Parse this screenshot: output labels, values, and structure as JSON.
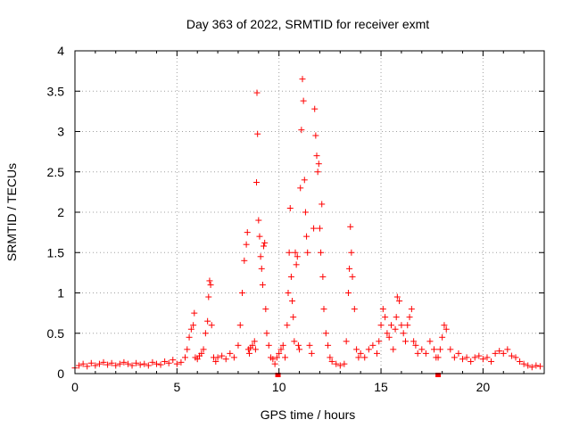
{
  "chart_data": {
    "type": "scatter",
    "title": "Day 363 of 2022, SRMTID for receiver exmt",
    "xlabel": "GPS time / hours",
    "ylabel": "SRMTID / TECUs",
    "xlim": [
      0,
      23
    ],
    "ylim": [
      0,
      4
    ],
    "x_ticks": [
      0,
      5,
      10,
      15,
      20
    ],
    "x_tick_labels": [
      "0",
      "5",
      "10",
      "15",
      "20"
    ],
    "y_ticks": [
      0,
      0.5,
      1,
      1.5,
      2,
      2.5,
      3,
      3.5,
      4
    ],
    "y_tick_labels": [
      "0",
      "0.5",
      "1",
      "1.5",
      "2",
      "2.5",
      "3",
      "3.5",
      "4"
    ],
    "grid": true,
    "marker": "+",
    "color": "#ff0000",
    "series": [
      {
        "name": "SRMTID",
        "x": [
          0.0,
          0.2,
          0.4,
          0.6,
          0.8,
          1.0,
          1.2,
          1.4,
          1.6,
          1.8,
          2.0,
          2.2,
          2.4,
          2.6,
          2.8,
          3.0,
          3.2,
          3.4,
          3.6,
          3.8,
          4.0,
          4.2,
          4.4,
          4.6,
          4.8,
          5.0,
          5.2,
          5.4,
          5.5,
          5.6,
          5.7,
          5.8,
          5.85,
          5.9,
          6.0,
          6.1,
          6.2,
          6.3,
          6.4,
          6.5,
          6.55,
          6.6,
          6.65,
          6.7,
          6.8,
          6.9,
          7.0,
          7.2,
          7.4,
          7.6,
          7.8,
          8.0,
          8.1,
          8.2,
          8.3,
          8.4,
          8.45,
          8.5,
          8.55,
          8.6,
          8.7,
          8.8,
          8.85,
          8.9,
          8.92,
          8.95,
          9.0,
          9.05,
          9.1,
          9.15,
          9.2,
          9.25,
          9.3,
          9.35,
          9.4,
          9.5,
          9.6,
          9.7,
          9.8,
          9.9,
          10.0,
          10.1,
          10.2,
          10.3,
          10.4,
          10.45,
          10.5,
          10.55,
          10.6,
          10.65,
          10.7,
          10.75,
          10.8,
          10.85,
          10.9,
          10.95,
          11.0,
          11.05,
          11.1,
          11.15,
          11.2,
          11.25,
          11.3,
          11.35,
          11.4,
          11.5,
          11.6,
          11.7,
          11.75,
          11.8,
          11.85,
          11.9,
          11.95,
          12.0,
          12.05,
          12.1,
          12.15,
          12.2,
          12.3,
          12.4,
          12.5,
          12.6,
          12.8,
          13.0,
          13.2,
          13.3,
          13.4,
          13.45,
          13.5,
          13.55,
          13.6,
          13.7,
          13.8,
          13.9,
          14.0,
          14.2,
          14.4,
          14.6,
          14.8,
          14.9,
          15.0,
          15.1,
          15.2,
          15.3,
          15.4,
          15.5,
          15.6,
          15.7,
          15.75,
          15.8,
          15.9,
          16.0,
          16.1,
          16.2,
          16.3,
          16.4,
          16.5,
          16.6,
          16.7,
          16.8,
          17.0,
          17.2,
          17.4,
          17.6,
          17.7,
          17.8,
          17.9,
          18.0,
          18.1,
          18.2,
          18.4,
          18.6,
          18.8,
          19.0,
          19.2,
          19.4,
          19.6,
          19.8,
          20.0,
          20.2,
          20.4,
          20.6,
          20.8,
          21.0,
          21.2,
          21.4,
          21.6,
          21.8,
          22.0,
          22.2,
          22.4,
          22.6,
          22.8
        ],
        "y": [
          0.07,
          0.1,
          0.12,
          0.09,
          0.13,
          0.1,
          0.12,
          0.14,
          0.11,
          0.13,
          0.1,
          0.12,
          0.14,
          0.12,
          0.1,
          0.13,
          0.11,
          0.12,
          0.1,
          0.14,
          0.12,
          0.11,
          0.15,
          0.13,
          0.17,
          0.12,
          0.14,
          0.2,
          0.3,
          0.45,
          0.55,
          0.6,
          0.75,
          0.2,
          0.18,
          0.22,
          0.25,
          0.3,
          0.5,
          0.65,
          0.95,
          1.15,
          1.1,
          0.6,
          0.2,
          0.15,
          0.2,
          0.22,
          0.18,
          0.25,
          0.2,
          0.35,
          0.6,
          1.0,
          1.4,
          1.6,
          1.75,
          0.3,
          0.25,
          0.32,
          0.35,
          0.4,
          0.3,
          2.37,
          3.48,
          2.97,
          1.9,
          1.7,
          1.45,
          1.3,
          1.1,
          1.58,
          1.62,
          0.8,
          0.5,
          0.35,
          0.2,
          0.18,
          0.12,
          0.2,
          0.25,
          0.3,
          0.35,
          0.2,
          0.6,
          1.0,
          1.5,
          2.05,
          1.2,
          0.9,
          0.7,
          0.4,
          1.5,
          1.35,
          1.45,
          0.35,
          0.3,
          2.3,
          3.02,
          3.65,
          3.38,
          2.4,
          2.0,
          1.7,
          1.5,
          0.35,
          0.25,
          1.8,
          3.28,
          2.95,
          2.7,
          2.5,
          2.6,
          1.8,
          1.5,
          2.1,
          1.2,
          0.8,
          0.5,
          0.35,
          0.2,
          0.15,
          0.12,
          0.1,
          0.12,
          0.4,
          1.0,
          1.3,
          1.82,
          1.5,
          1.2,
          0.8,
          0.3,
          0.2,
          0.25,
          0.2,
          0.3,
          0.35,
          0.25,
          0.4,
          0.6,
          0.8,
          0.7,
          0.5,
          0.45,
          0.6,
          0.3,
          0.55,
          0.7,
          0.95,
          0.9,
          0.6,
          0.5,
          0.4,
          0.6,
          0.7,
          0.8,
          0.4,
          0.35,
          0.25,
          0.3,
          0.25,
          0.4,
          0.3,
          0.2,
          0.2,
          0.3,
          0.45,
          0.6,
          0.55,
          0.3,
          0.2,
          0.25,
          0.18,
          0.2,
          0.15,
          0.2,
          0.22,
          0.18,
          0.2,
          0.15,
          0.25,
          0.28,
          0.25,
          0.3,
          0.22,
          0.2,
          0.15,
          0.12,
          0.1,
          0.08,
          0.1,
          0.09
        ]
      }
    ],
    "outliers_on_axis": [
      {
        "x": 9.95,
        "y": 0.0
      },
      {
        "x": 17.8,
        "y": 0.0
      }
    ]
  }
}
